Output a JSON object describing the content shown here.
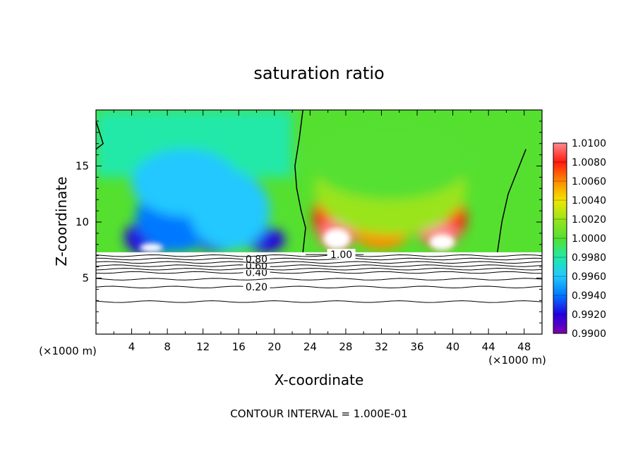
{
  "chart_data": {
    "type": "heatmap",
    "title": "saturation ratio",
    "xlabel": "X-coordinate",
    "ylabel": "Z-coordinate",
    "x_unit_note": "(×1000 m)",
    "x_unit_note_right": "(×1000 m)",
    "footer": "CONTOUR INTERVAL = 1.000E-01",
    "xlim": [
      0,
      50
    ],
    "ylim": [
      0,
      20
    ],
    "x_ticks": [
      4,
      8,
      12,
      16,
      20,
      24,
      28,
      32,
      36,
      40,
      44,
      48
    ],
    "y_ticks": [
      5,
      10,
      15
    ],
    "colorbar": {
      "min": 0.99,
      "max": 1.01,
      "levels": [
        "0.9900",
        "0.9920",
        "0.9940",
        "0.9960",
        "0.9980",
        "1.0000",
        "1.0020",
        "1.0040",
        "1.0060",
        "1.0080",
        "1.0100"
      ],
      "colors": [
        "#7b00b0",
        "#2200e0",
        "#0078ff",
        "#22c8ff",
        "#22e8a8",
        "#55e030",
        "#9ae41c",
        "#f2e600",
        "#ff8a00",
        "#ff1a10",
        "#ff8a90"
      ]
    },
    "contour_lines": [
      {
        "level": "0.20",
        "z": 4.2
      },
      {
        "level": "0.40",
        "z": 5.5
      },
      {
        "level": "0.60",
        "z": 6.1
      },
      {
        "level": "0.80",
        "z": 6.7
      },
      {
        "level": "",
        "z": 2.9
      },
      {
        "level": "",
        "z": 4.9
      },
      {
        "level": "",
        "z": 5.8
      },
      {
        "level": "",
        "z": 6.4
      },
      {
        "level": "",
        "z": 7.0
      }
    ],
    "saturation_contour_label": "1.00",
    "cloud_base_z": 7.3,
    "color_blobs": [
      {
        "x": 6,
        "z": 8.6,
        "rx": 2.8,
        "rz": 1.6,
        "value": 0.991
      },
      {
        "x": 13.5,
        "z": 8.7,
        "rx": 2.6,
        "rz": 1.4,
        "value": 0.9915
      },
      {
        "x": 19,
        "z": 8.4,
        "rx": 2.2,
        "rz": 1.1,
        "value": 0.992
      },
      {
        "x": 9,
        "z": 10.5,
        "rx": 4.5,
        "rz": 3.2,
        "value": 0.9945
      },
      {
        "x": 15,
        "z": 11,
        "rx": 4.5,
        "rz": 3.5,
        "value": 0.995
      },
      {
        "x": 10,
        "z": 13.5,
        "rx": 6,
        "rz": 3,
        "value": 0.9965
      },
      {
        "x": 27,
        "z": 10.5,
        "rx": 2.6,
        "rz": 3.0,
        "value": 1.0075
      },
      {
        "x": 38.5,
        "z": 10.4,
        "rx": 3.0,
        "rz": 2.6,
        "value": 1.0075
      },
      {
        "x": 32,
        "z": 9.0,
        "rx": 3.0,
        "rz": 1.4,
        "value": 1.006
      },
      {
        "x": 27,
        "z": 9.0,
        "rx": 1.8,
        "rz": 1.2,
        "value": 1.01
      },
      {
        "x": 38.5,
        "z": 9.0,
        "rx": 2.0,
        "rz": 0.9,
        "value": 1.01
      },
      {
        "x": 33,
        "z": 13,
        "rx": 8.5,
        "rz": 4.2,
        "value": 1.002
      },
      {
        "x": 33,
        "z": 15.5,
        "rx": 9,
        "rz": 3.5,
        "value": 1.001
      }
    ]
  }
}
